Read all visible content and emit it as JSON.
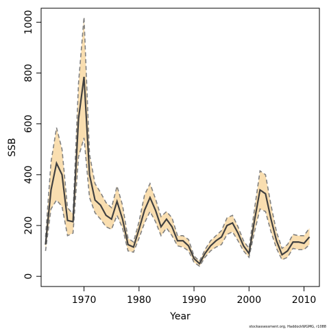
{
  "chart_data": {
    "type": "line",
    "xlabel": "Year",
    "ylabel": "SSB",
    "xlim": [
      1962.2,
      2012.8
    ],
    "ylim": [
      -40,
      1055
    ],
    "x_ticks": [
      1970,
      1980,
      1990,
      2000,
      2010
    ],
    "y_ticks": [
      0,
      200,
      400,
      600,
      800,
      1000
    ],
    "grid": false,
    "legend": "none",
    "colors": {
      "band": "#f9deb0",
      "line": "#404040",
      "bound": "#808080"
    },
    "x": [
      1963,
      1964,
      1965,
      1966,
      1967,
      1968,
      1969,
      1970,
      1971,
      1972,
      1973,
      1974,
      1975,
      1976,
      1977,
      1978,
      1979,
      1980,
      1981,
      1982,
      1983,
      1984,
      1985,
      1986,
      1987,
      1988,
      1989,
      1990,
      1991,
      1992,
      1993,
      1994,
      1995,
      1996,
      1997,
      1998,
      1999,
      2000,
      2001,
      2002,
      2003,
      2004,
      2005,
      2006,
      2007,
      2008,
      2009,
      2010,
      2011
    ],
    "series": [
      {
        "role": "estimate",
        "values": [
          125,
          340,
          445,
          400,
          220,
          215,
          620,
          785,
          400,
          300,
          280,
          240,
          225,
          295,
          225,
          125,
          115,
          185,
          260,
          310,
          260,
          195,
          225,
          195,
          140,
          140,
          120,
          70,
          50,
          90,
          120,
          140,
          155,
          200,
          210,
          170,
          120,
          90,
          220,
          340,
          325,
          225,
          140,
          85,
          100,
          135,
          135,
          130,
          155
        ]
      },
      {
        "role": "upper",
        "values": [
          155,
          450,
          585,
          500,
          270,
          245,
          760,
          1020,
          480,
          365,
          330,
          290,
          270,
          355,
          280,
          150,
          135,
          215,
          320,
          365,
          305,
          235,
          255,
          230,
          160,
          160,
          145,
          80,
          60,
          105,
          140,
          160,
          180,
          230,
          240,
          195,
          140,
          110,
          265,
          415,
          400,
          280,
          175,
          110,
          125,
          165,
          160,
          160,
          190
        ]
      },
      {
        "role": "lower",
        "values": [
          100,
          265,
          300,
          275,
          160,
          170,
          470,
          545,
          310,
          250,
          225,
          195,
          185,
          240,
          190,
          100,
          95,
          150,
          210,
          255,
          215,
          160,
          190,
          160,
          120,
          115,
          100,
          55,
          40,
          75,
          100,
          115,
          125,
          165,
          175,
          140,
          100,
          75,
          175,
          265,
          255,
          175,
          110,
          65,
          75,
          110,
          105,
          105,
          125
        ]
      }
    ]
  },
  "credit": "stockassessment.org, HaddockWGMG, r1088"
}
